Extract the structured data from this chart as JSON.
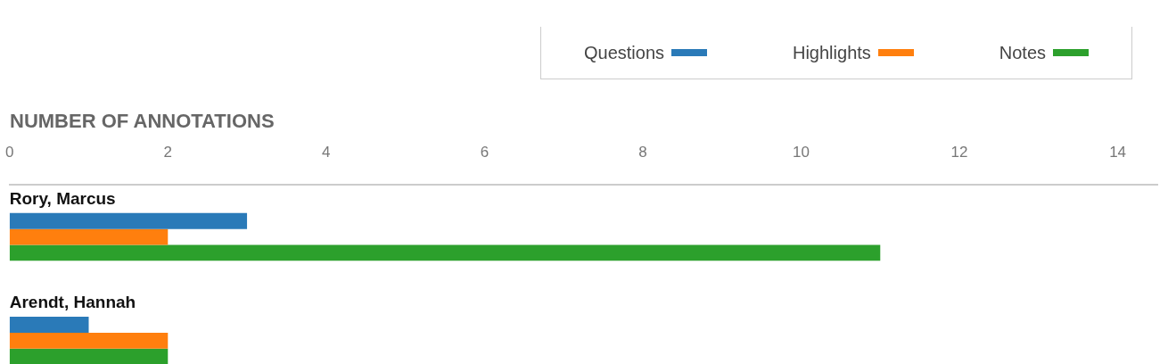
{
  "chart_data": {
    "type": "bar",
    "orientation": "horizontal",
    "title": "NUMBER OF ANNOTATIONS",
    "categories": [
      "Rory, Marcus",
      "Arendt, Hannah"
    ],
    "series": [
      {
        "name": "Questions",
        "color": "#2a7ab8",
        "values": [
          3,
          1
        ]
      },
      {
        "name": "Highlights",
        "color": "#ff7f0e",
        "values": [
          2,
          2
        ]
      },
      {
        "name": "Notes",
        "color": "#2ca02c",
        "values": [
          11,
          2
        ]
      }
    ],
    "xlim": [
      0,
      14.5
    ],
    "xticks": [
      0,
      2,
      4,
      6,
      8,
      10,
      12,
      14
    ],
    "grid": false,
    "legend": "top right"
  }
}
